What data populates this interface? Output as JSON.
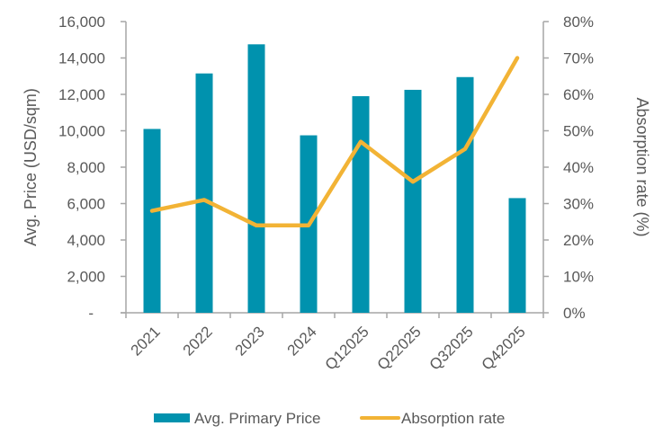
{
  "chart_data": {
    "type": "bar",
    "categories": [
      "2021",
      "2022",
      "2023",
      "2024",
      "Q12025",
      "Q22025",
      "Q32025",
      "Q42025"
    ],
    "series": [
      {
        "name": "Avg. Primary Price",
        "type": "bar",
        "axis": "left",
        "color": "#0092AE",
        "values": [
          10100,
          13150,
          14750,
          9750,
          11900,
          12250,
          12950,
          6300
        ]
      },
      {
        "name": "Absorption rate",
        "type": "line",
        "axis": "right",
        "color": "#F2B335",
        "values": [
          28,
          31,
          24,
          24,
          47,
          36,
          45,
          70
        ]
      }
    ],
    "ylabel": "Avg. Price (USD/sqm)",
    "y2label": "Absorption rate (%)",
    "ylim": [
      0,
      16000
    ],
    "y2lim": [
      0,
      80
    ],
    "yticks": [
      "-",
      "2,000",
      "4,000",
      "6,000",
      "8,000",
      "10,000",
      "12,000",
      "14,000",
      "16,000"
    ],
    "y2ticks": [
      "0%",
      "10%",
      "20%",
      "30%",
      "40%",
      "50%",
      "60%",
      "70%",
      "80%"
    ],
    "grid": false,
    "legend": "bottom",
    "axis_color": "#A6A6A6"
  }
}
